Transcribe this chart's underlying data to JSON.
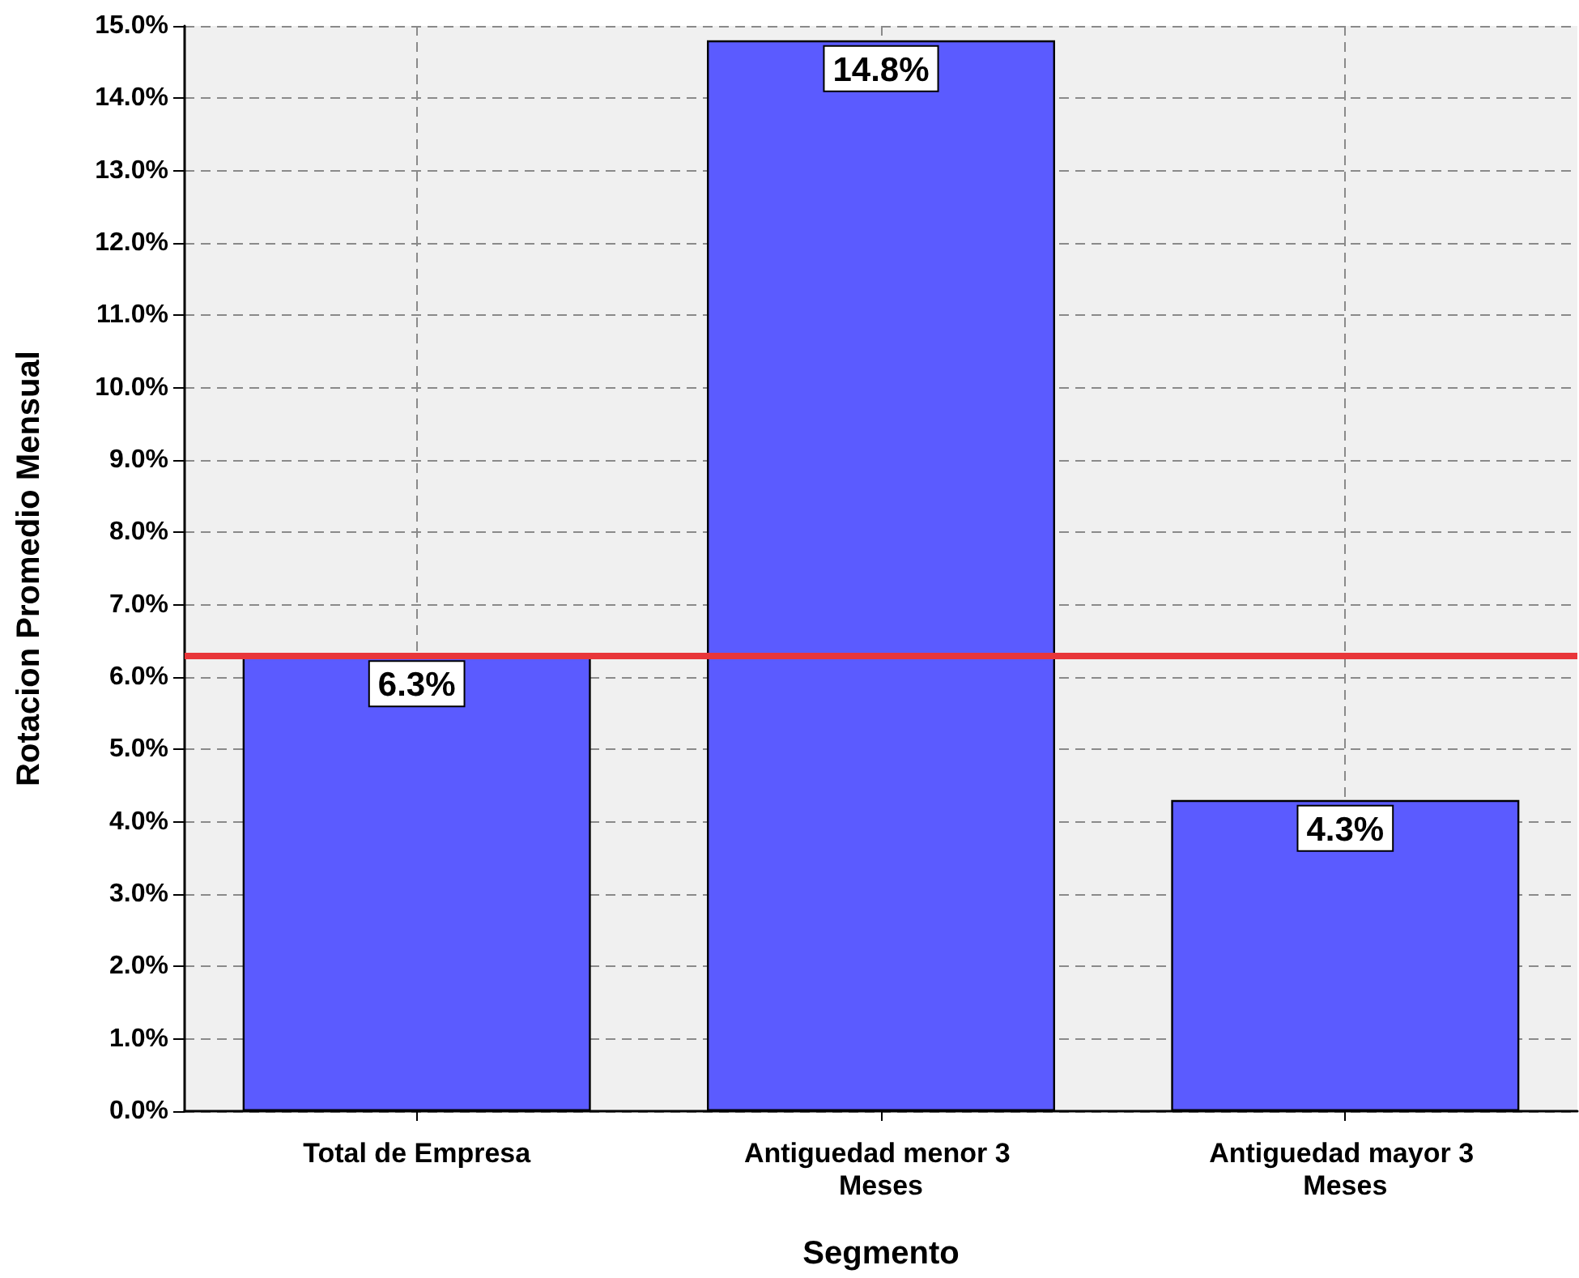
{
  "chart_data": {
    "type": "bar",
    "categories": [
      "Total de Empresa",
      "Antiguedad menor 3 Meses",
      "Antiguedad mayor 3 Meses"
    ],
    "values": [
      6.3,
      14.8,
      4.3
    ],
    "value_labels": [
      "6.3%",
      "14.8%",
      "4.3%"
    ],
    "color": "#5b5bff",
    "xlabel": "Segmento",
    "ylabel": "Rotacion Promedio Mensual",
    "ylim": [
      0,
      15
    ],
    "yticks": [
      {
        "value": 0,
        "label": "0.0%"
      },
      {
        "value": 1,
        "label": "1.0%"
      },
      {
        "value": 2,
        "label": "2.0%"
      },
      {
        "value": 3,
        "label": "3.0%"
      },
      {
        "value": 4,
        "label": "4.0%"
      },
      {
        "value": 5,
        "label": "5.0%"
      },
      {
        "value": 6,
        "label": "6.0%"
      },
      {
        "value": 7,
        "label": "7.0%"
      },
      {
        "value": 8,
        "label": "8.0%"
      },
      {
        "value": 9,
        "label": "9.0%"
      },
      {
        "value": 10,
        "label": "10.0%"
      },
      {
        "value": 11,
        "label": "11.0%"
      },
      {
        "value": 12,
        "label": "12.0%"
      },
      {
        "value": 13,
        "label": "13.0%"
      },
      {
        "value": 14,
        "label": "14.0%"
      },
      {
        "value": 15,
        "label": "15.0%"
      }
    ],
    "ref_lines": [
      {
        "axis": "y",
        "value": 6.3,
        "color": "#e8363a"
      }
    ],
    "grid": true
  }
}
